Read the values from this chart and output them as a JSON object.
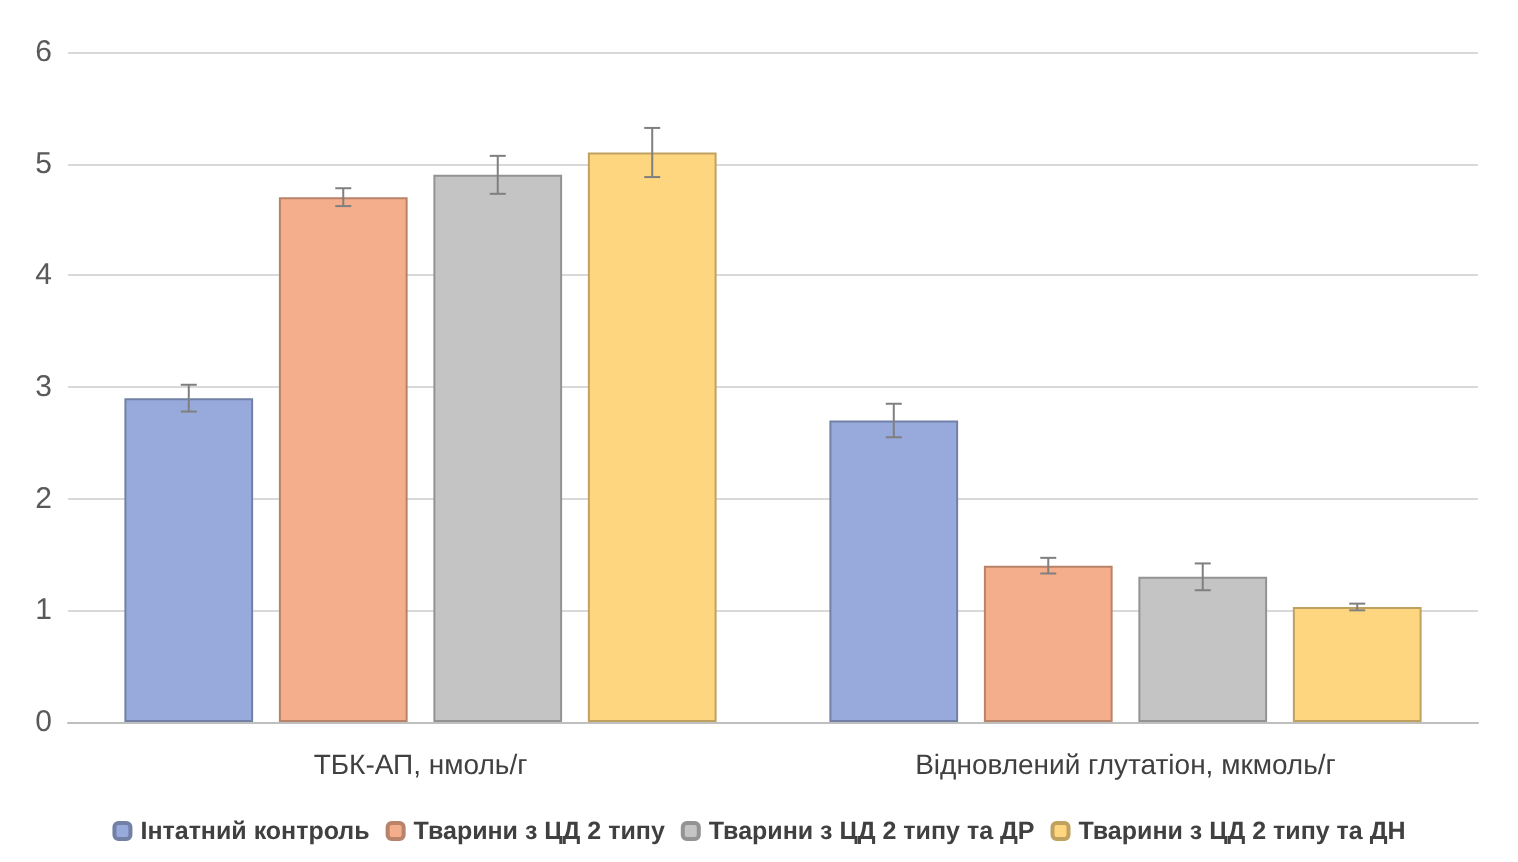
{
  "chart_data": {
    "type": "bar",
    "categories": [
      "ТБК-АП, нмоль/г",
      "Відновлений глутатіон, мкмоль/г"
    ],
    "series": [
      {
        "name": "Інтатний контроль",
        "color": "#98aadc",
        "values": [
          2.9,
          2.7
        ],
        "errors": [
          0.12,
          0.15
        ]
      },
      {
        "name": "Тварини з ЦД 2 типу",
        "color": "#f5ae8c",
        "values": [
          4.7,
          1.4
        ],
        "errors": [
          0.08,
          0.07
        ]
      },
      {
        "name": "Тварини з ЦД 2 типу та ДР",
        "color": "#c4c4c4",
        "values": [
          4.9,
          1.3
        ],
        "errors": [
          0.17,
          0.12
        ]
      },
      {
        "name": "Тварини з ЦД 2 типу та ДН",
        "color": "#fed680",
        "values": [
          5.1,
          1.03
        ],
        "errors": [
          0.22,
          0.03
        ]
      }
    ],
    "ylim": [
      0,
      6
    ],
    "yticks": [
      0,
      1,
      2,
      3,
      4,
      5,
      6
    ],
    "grid": "y",
    "legend": "bottom"
  }
}
